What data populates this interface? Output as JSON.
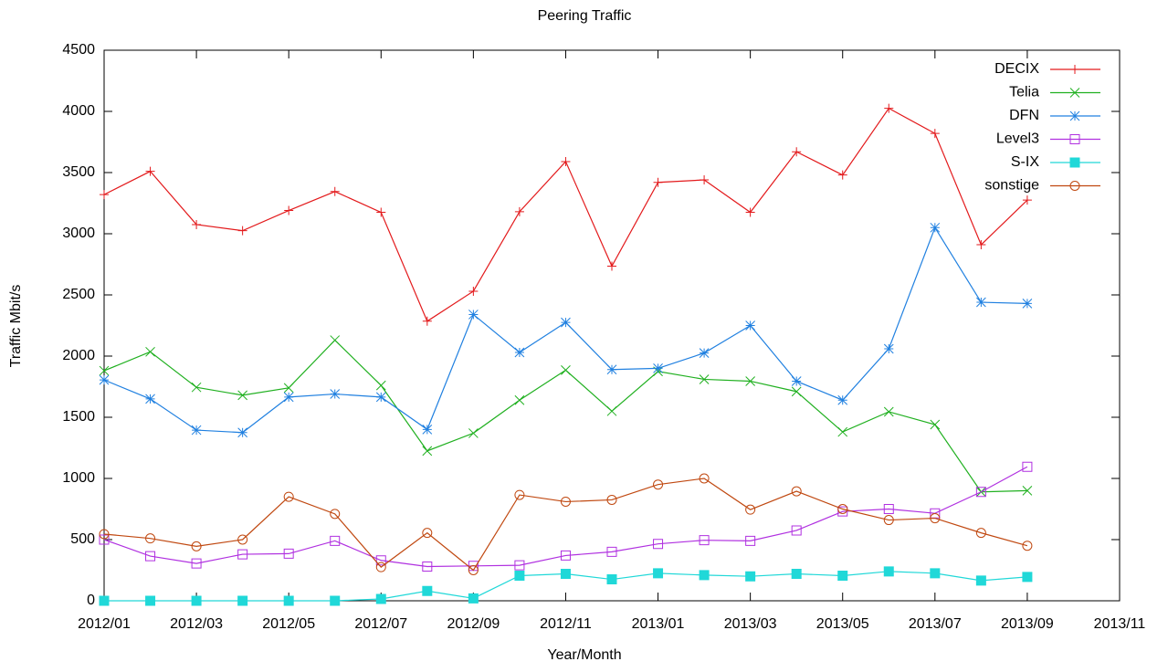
{
  "chart_data": {
    "type": "line",
    "title": "Peering Traffic",
    "xlabel": "Year/Month",
    "ylabel": "Traffic Mbit/s",
    "x": [
      "2012/01",
      "2012/02",
      "2012/03",
      "2012/04",
      "2012/05",
      "2012/06",
      "2012/07",
      "2012/08",
      "2012/09",
      "2012/10",
      "2012/11",
      "2012/12",
      "2013/01",
      "2013/02",
      "2013/03",
      "2013/04",
      "2013/05",
      "2013/06",
      "2013/07",
      "2013/08",
      "2013/09"
    ],
    "xlim": [
      "2012/01",
      "2013/11"
    ],
    "xticks": [
      "2012/01",
      "2012/03",
      "2012/05",
      "2012/07",
      "2012/09",
      "2012/11",
      "2013/01",
      "2013/03",
      "2013/05",
      "2013/07",
      "2013/09",
      "2013/11"
    ],
    "ylim": [
      0,
      4500
    ],
    "yticks": [
      0,
      500,
      1000,
      1500,
      2000,
      2500,
      3000,
      3500,
      4000,
      4500
    ],
    "legend": "top-right",
    "series": [
      {
        "name": "DECIX",
        "color": "#e31a1c",
        "values": [
          3320,
          3510,
          3075,
          3025,
          3190,
          3345,
          3175,
          2285,
          2530,
          3180,
          3590,
          2735,
          3420,
          3440,
          3175,
          3670,
          3480,
          4025,
          3820,
          2910,
          3275
        ]
      },
      {
        "name": "Telia",
        "color": "#20b020",
        "values": [
          1880,
          2035,
          1745,
          1680,
          1740,
          2130,
          1760,
          1225,
          1370,
          1640,
          1885,
          1550,
          1875,
          1810,
          1795,
          1710,
          1380,
          1545,
          1440,
          890,
          900
        ]
      },
      {
        "name": "DFN",
        "color": "#2080e0",
        "values": [
          1805,
          1650,
          1395,
          1375,
          1665,
          1690,
          1665,
          1400,
          2340,
          2030,
          2275,
          1890,
          1900,
          2025,
          2250,
          1795,
          1640,
          2060,
          3050,
          2440,
          2430
        ]
      },
      {
        "name": "Level3",
        "color": "#b030e0",
        "values": [
          500,
          365,
          305,
          380,
          385,
          490,
          330,
          280,
          285,
          290,
          370,
          400,
          465,
          495,
          490,
          575,
          730,
          750,
          715,
          890,
          1095
        ]
      },
      {
        "name": "S-IX",
        "color": "#20d8d8",
        "values": [
          0,
          0,
          0,
          0,
          0,
          0,
          15,
          80,
          20,
          205,
          220,
          175,
          225,
          210,
          200,
          220,
          205,
          240,
          225,
          165,
          195
        ]
      },
      {
        "name": "sonstige",
        "color": "#c04810",
        "values": [
          545,
          510,
          445,
          500,
          850,
          710,
          275,
          555,
          250,
          865,
          810,
          825,
          950,
          1000,
          745,
          895,
          750,
          660,
          675,
          555,
          450
        ]
      }
    ]
  }
}
